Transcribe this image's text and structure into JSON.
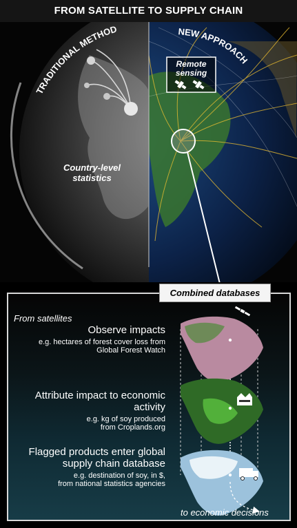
{
  "title": "FROM SATELLITE TO SUPPLY CHAIN",
  "globe": {
    "left_label": "TRADITIONAL METHOD",
    "right_label": "NEW APPROACH",
    "country_level": [
      "Country-level",
      "statistics"
    ],
    "remote_sensing": [
      "Remote",
      "sensing"
    ]
  },
  "panel": {
    "badge": "Combined databases",
    "from_satellites": "From satellites",
    "steps": [
      {
        "heading": "Observe impacts",
        "sub": [
          "e.g. hectares of forest cover loss from",
          "Global Forest Watch"
        ]
      },
      {
        "heading": "Attribute impact to economic activity",
        "sub": [
          "e.g. kg of soy produced",
          "from Croplands.org"
        ]
      },
      {
        "heading": [
          "Flagged products enter global",
          "supply chain database"
        ],
        "sub": [
          "e.g. destination of soy, in $,",
          "from national statistics agencies"
        ]
      }
    ],
    "footer": "to economic decisions"
  }
}
